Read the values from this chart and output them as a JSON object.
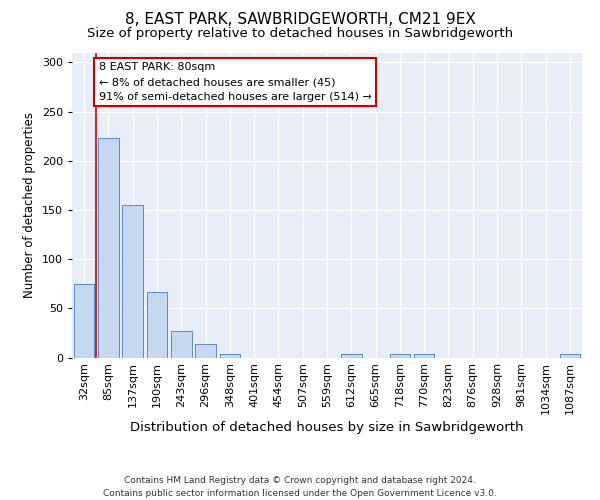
{
  "title1": "8, EAST PARK, SAWBRIDGEWORTH, CM21 9EX",
  "title2": "Size of property relative to detached houses in Sawbridgeworth",
  "xlabel": "Distribution of detached houses by size in Sawbridgeworth",
  "ylabel": "Number of detached properties",
  "categories": [
    "32sqm",
    "85sqm",
    "137sqm",
    "190sqm",
    "243sqm",
    "296sqm",
    "348sqm",
    "401sqm",
    "454sqm",
    "507sqm",
    "559sqm",
    "612sqm",
    "665sqm",
    "718sqm",
    "770sqm",
    "823sqm",
    "876sqm",
    "928sqm",
    "981sqm",
    "1034sqm",
    "1087sqm"
  ],
  "values": [
    75,
    223,
    155,
    67,
    27,
    14,
    4,
    0,
    0,
    0,
    0,
    4,
    0,
    4,
    4,
    0,
    0,
    0,
    0,
    0,
    4
  ],
  "bar_color": "#c5d8f0",
  "bar_edge_color": "#5b8cc8",
  "vline_x": 0.5,
  "vline_color": "#cc0000",
  "annotation_text": "8 EAST PARK: 80sqm\n← 8% of detached houses are smaller (45)\n91% of semi-detached houses are larger (514) →",
  "annotation_box_color": "#ffffff",
  "annotation_box_edge_color": "#cc0000",
  "ylim": [
    0,
    310
  ],
  "yticks": [
    0,
    50,
    100,
    150,
    200,
    250,
    300
  ],
  "background_color": "#e8eef7",
  "footer_text": "Contains HM Land Registry data © Crown copyright and database right 2024.\nContains public sector information licensed under the Open Government Licence v3.0.",
  "title1_fontsize": 11,
  "title2_fontsize": 9.5,
  "xlabel_fontsize": 9.5,
  "ylabel_fontsize": 8.5,
  "tick_fontsize": 8,
  "annotation_fontsize": 8,
  "footer_fontsize": 6.5
}
